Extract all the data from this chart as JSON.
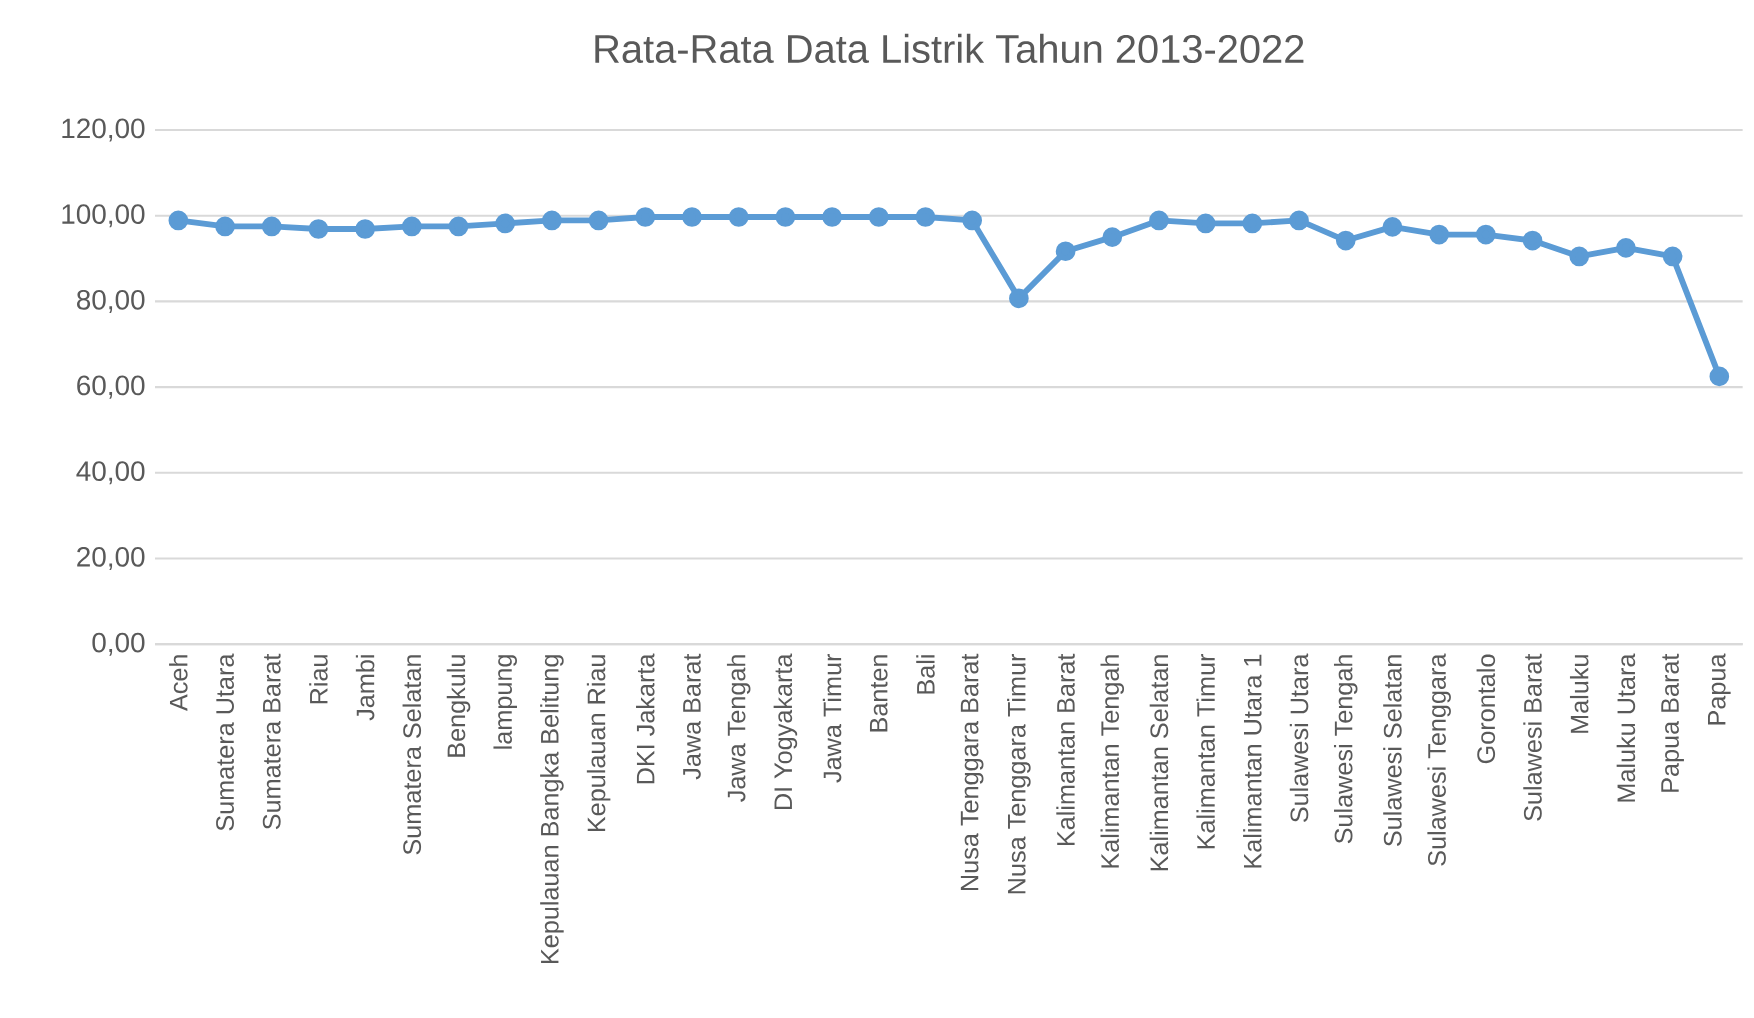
{
  "chart_data": {
    "type": "line",
    "title": "Rata-Rata Data Listrik Tahun 2013-2022",
    "categories": [
      "Aceh",
      "Sumatera Utara",
      "Sumatera Barat",
      "Riau",
      "Jambi",
      "Sumatera Selatan",
      "Bengkulu",
      "lampung",
      "Kepulauan Bangka Belitung",
      "Kepulauan Riau",
      "DKI Jakarta",
      "Jawa Barat",
      "Jawa Tengah",
      "DI Yogyakarta",
      "Jawa Timur",
      "Banten",
      "Bali",
      "Nusa Tenggara Barat",
      "Nusa Tenggara Timur",
      "Kalimantan Barat",
      "Kalimantan Tengah",
      "Kalimantan Selatan",
      "Kalimantan Timur",
      "Kalimantan Utara 1",
      "Sulawesi Utara",
      "Sulawesi Tengah",
      "Sulawesi Selatan",
      "Sulawesi Tenggara",
      "Gorontalo",
      "Sulawesi Barat",
      "Maluku",
      "Maluku Utara",
      "Papua Barat",
      "Papua"
    ],
    "series": [
      {
        "color": "#5b9bd5",
        "values": [
          98.9,
          97.5,
          97.5,
          96.9,
          96.9,
          97.5,
          97.5,
          98.2,
          98.9,
          98.9,
          99.7,
          99.7,
          99.7,
          99.7,
          99.7,
          99.7,
          99.7,
          98.9,
          80.7,
          91.7,
          95.0,
          98.9,
          98.2,
          98.2,
          98.9,
          94.2,
          97.4,
          95.6,
          95.6,
          94.2,
          90.5,
          92.5,
          90.5,
          62.5
        ]
      }
    ],
    "ylim": [
      0,
      120
    ],
    "yticks": [
      {
        "value": 0,
        "label": "0,00"
      },
      {
        "value": 20,
        "label": "20,00"
      },
      {
        "value": 40,
        "label": "40,00"
      },
      {
        "value": 60,
        "label": "60,00"
      },
      {
        "value": 80,
        "label": "80,00"
      },
      {
        "value": 100,
        "label": "100,00"
      },
      {
        "value": 120,
        "label": "120,00"
      }
    ],
    "grid": "y",
    "marker": "circle",
    "line_style": "solid"
  }
}
